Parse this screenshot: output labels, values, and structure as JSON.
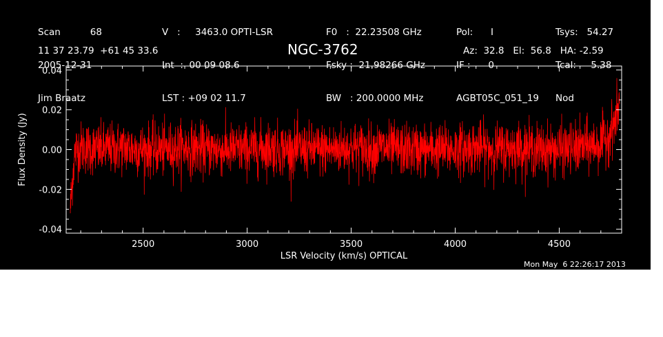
{
  "header": {
    "col1": [
      "Scan          68",
      "2005-12-31",
      "Jim Braatz"
    ],
    "col2": [
      "V   :     3463.0 OPTI-LSR",
      "Int  :  00 09 08.6",
      "LST : +09 02 11.7"
    ],
    "col3": [
      "F0   :  22.23508 GHz",
      "Fsky :  21.98266 GHz",
      "BW   : 200.0000 MHz"
    ],
    "col4": [
      "Pol:      I",
      "IF :      0",
      "AGBT05C_051_19"
    ],
    "col5": [
      "Tsys:   54.27",
      "Tcal:     5.38",
      "Nod"
    ],
    "coords": "11 37 23.79  +61 45 33.6",
    "object": "NGC-3762",
    "pointing": "Az:  32.8   El:  56.8   HA: -2.59"
  },
  "timestamp": "Mon May  6 22:26:17 2013",
  "chart_data": {
    "type": "line",
    "title": "NGC-3762",
    "xlabel": "LSR Velocity (km/s) OPTICAL",
    "ylabel": "Flux Density (Jy)",
    "xlim": [
      2130,
      4800
    ],
    "ylim": [
      -0.042,
      0.042
    ],
    "xticks": [
      2500,
      3000,
      3500,
      4000,
      4500
    ],
    "xtick_labels": [
      "2500",
      "3000",
      "3500",
      "4000",
      "4500"
    ],
    "yticks": [
      -0.04,
      -0.02,
      0.0,
      0.02,
      0.04
    ],
    "ytick_labels": [
      "-0.04",
      "-0.02",
      "0.00",
      "0.02",
      "0.04"
    ],
    "line_color": "#ff0000",
    "background": "#000000",
    "axis_color": "#ffffff",
    "series": [
      {
        "x": [
          2150,
          2160,
          2170,
          2180,
          2200,
          2300,
          2400,
          2500,
          2600,
          2700,
          2800,
          2900,
          3000,
          3100,
          3200,
          3300,
          3400,
          3500,
          3600,
          3650,
          3700,
          3800,
          3900,
          4000,
          4100,
          4200,
          4300,
          4400,
          4500,
          4600,
          4650,
          4700,
          4720,
          4740,
          4760,
          4780,
          4790
        ],
        "y": [
          -0.03,
          -0.015,
          -0.003,
          0.0,
          0.001,
          0.0,
          0.001,
          0.0,
          0.0,
          0.001,
          0.0,
          0.0,
          0.0,
          0.001,
          0.0,
          0.0,
          0.0,
          0.001,
          0.0,
          0.001,
          0.0,
          0.0,
          0.0,
          0.0,
          0.001,
          0.0,
          0.001,
          0.0,
          0.0,
          0.001,
          0.002,
          0.003,
          0.005,
          0.008,
          0.012,
          0.018,
          0.025
        ],
        "noise_rms": 0.0065
      }
    ]
  }
}
